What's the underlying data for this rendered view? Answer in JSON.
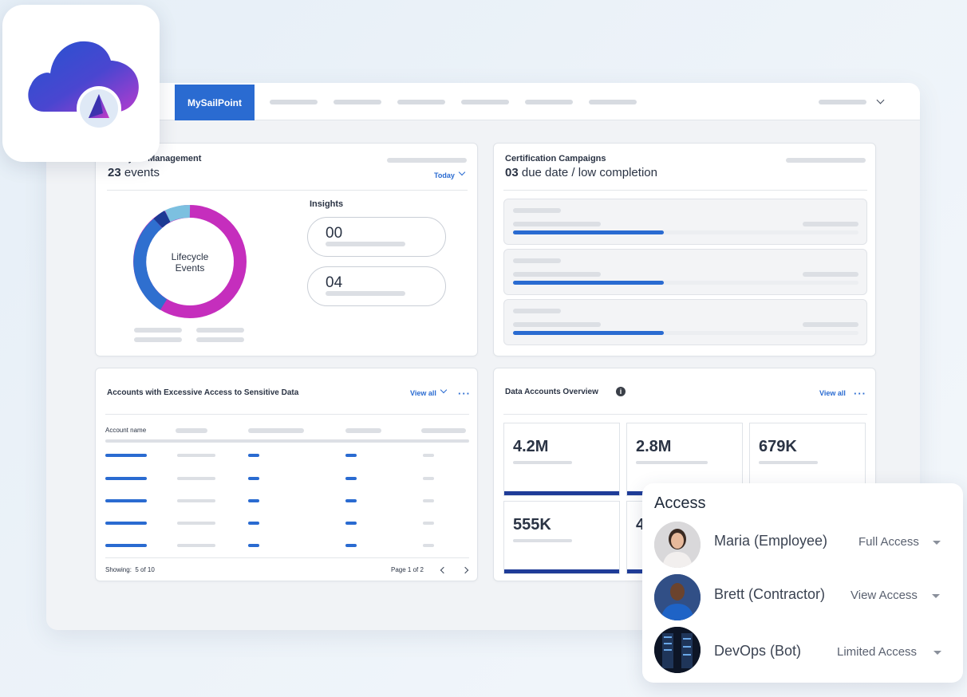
{
  "nav": {
    "brand": "MySailPoint"
  },
  "lifecycle": {
    "title": "Lifecycle Management",
    "count": "23",
    "count_suffix": " events",
    "filter": "Today",
    "donut_label_line1": "Lifecycle",
    "donut_label_line2": "Events",
    "insights_title": "Insights",
    "insights": [
      "00",
      "04"
    ],
    "donut_colors": {
      "magenta": "#c52ebd",
      "blue": "#2f6fcf",
      "navy": "#1c3a94",
      "light": "#7cc0e0"
    }
  },
  "certifications": {
    "title": "Certification Campaigns",
    "count": "03",
    "count_suffix": " due date / low completion"
  },
  "accounts": {
    "title": "Accounts with Excessive Access to Sensitive Data",
    "view_all": "View all",
    "column_account": "Account name",
    "showing": "Showing:  5 of 10",
    "page": "Page 1 of 2"
  },
  "data_accounts": {
    "title": "Data Accounts Overview",
    "view_all": "View all",
    "metrics": [
      "4.2M",
      "2.8M",
      "679K",
      "555K",
      "4"
    ]
  },
  "access": {
    "title": "Access",
    "users": [
      {
        "name": "Maria (Employee)",
        "level": "Full Access"
      },
      {
        "name": "Brett (Contractor)",
        "level": "View Access"
      },
      {
        "name": "DevOps (Bot)",
        "level": "Limited Access"
      }
    ]
  },
  "colors": {
    "accent": "#2a6bd1",
    "navy_bar": "#1f3c98"
  }
}
